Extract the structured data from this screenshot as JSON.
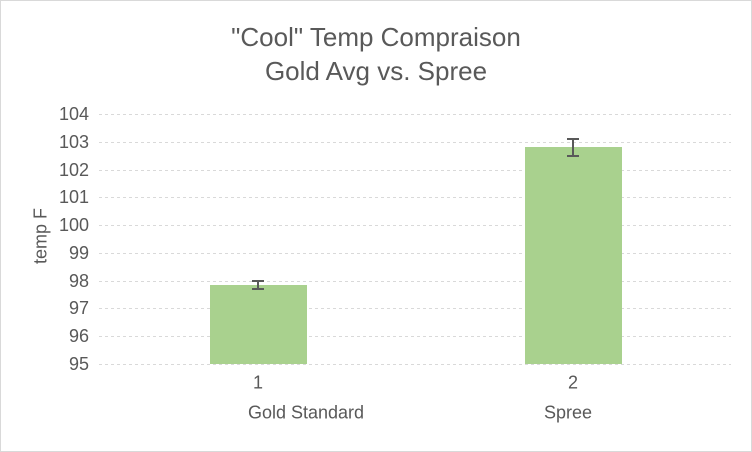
{
  "chart_data": {
    "type": "bar",
    "title": "\"Cool\" Temp Compraison Gold Avg vs. Spree",
    "title_lines": [
      "\"Cool\" Temp Compraison",
      "Gold Avg vs. Spree"
    ],
    "ylabel": "temp F",
    "xlabel": "",
    "categories": [
      {
        "tier1": "1",
        "tier2": "Gold Standard"
      },
      {
        "tier1": "2",
        "tier2": "Spree"
      }
    ],
    "series": [
      {
        "name": "temp",
        "values": [
          97.85,
          102.8
        ],
        "error_bars": [
          0.15,
          0.3
        ]
      }
    ],
    "ylim": [
      95,
      104
    ],
    "y_ticks": [
      95,
      96,
      97,
      98,
      99,
      100,
      101,
      102,
      103,
      104
    ],
    "grid": "horizontal-dashed",
    "legend": "none",
    "colors": {
      "bar_fill": "#A9D18E",
      "error_bar": "#595959",
      "gridline": "#D9D9D9",
      "text": "#595959",
      "chart_border": "#D9D9D9",
      "background": "#FFFFFF"
    }
  }
}
